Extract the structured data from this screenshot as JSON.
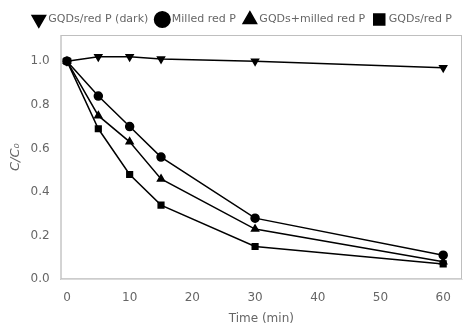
{
  "chart_data": {
    "type": "line",
    "xlabel": "Time (min)",
    "ylabel": "C/C₀",
    "x": [
      0,
      5,
      10,
      15,
      30,
      60
    ],
    "series": [
      {
        "name": "GQDs/red P (dark)",
        "color": "#000000",
        "marker": "triangle_down",
        "line_style": "solid",
        "values": [
          1.0,
          1.02,
          1.02,
          1.01,
          1.0,
          0.97
        ]
      },
      {
        "name": "Milled red P",
        "color": "#000000",
        "marker": "circle",
        "line_style": "solid",
        "values": [
          1.0,
          0.84,
          0.7,
          0.56,
          0.28,
          0.11
        ]
      },
      {
        "name": "GQDs+milled red P",
        "color": "#000000",
        "marker": "triangle",
        "line_style": "solid",
        "values": [
          1.0,
          0.75,
          0.63,
          0.46,
          0.23,
          0.08
        ]
      },
      {
        "name": "GQDs/red P",
        "color": "#000000",
        "marker": "square",
        "line_style": "solid",
        "values": [
          1.0,
          0.69,
          0.48,
          0.34,
          0.15,
          0.07
        ]
      }
    ],
    "xlim": [
      -1,
      63
    ],
    "ylim": [
      0.0,
      1.12
    ],
    "xticks": [
      0,
      10,
      20,
      30,
      40,
      50,
      60
    ],
    "yticks": [
      {
        "value": 0.0,
        "label": "0.0"
      },
      0.2,
      0.4,
      0.6,
      0.8,
      {
        "value": 1.0,
        "label": "1.0"
      }
    ],
    "grid": false,
    "legend": "upper right"
  }
}
